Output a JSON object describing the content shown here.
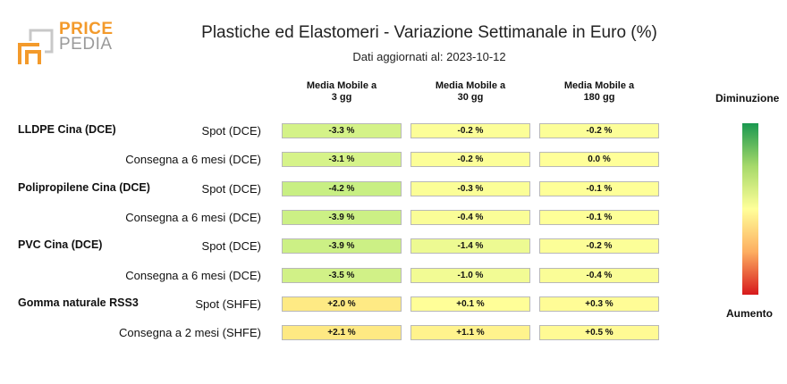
{
  "logo": {
    "line1": "PRICE",
    "line2": "PEDIA"
  },
  "chart_data": {
    "type": "table",
    "title": "Plastiche ed Elastomeri - Variazione Settimanale in Euro (%)",
    "subtitle": "Dati aggiornati al: 2023-10-12",
    "columns": [
      "Media Mobile a\n3 gg",
      "Media Mobile a\n30 gg",
      "Media Mobile a\n180 gg"
    ],
    "groups": [
      {
        "name": "LLDPE Cina (DCE)",
        "rows": [
          {
            "label": "Spot (DCE)",
            "values": [
              -3.3,
              -0.2,
              -0.2
            ],
            "labels": [
              "-3.3 %",
              "-0.2 %",
              "-0.2 %"
            ]
          },
          {
            "label": "Consegna a 6 mesi (DCE)",
            "values": [
              -3.1,
              -0.2,
              0.0
            ],
            "labels": [
              "-3.1 %",
              "-0.2 %",
              "0.0 %"
            ]
          }
        ]
      },
      {
        "name": "Polipropilene Cina (DCE)",
        "rows": [
          {
            "label": "Spot (DCE)",
            "values": [
              -4.2,
              -0.3,
              -0.1
            ],
            "labels": [
              "-4.2 %",
              "-0.3 %",
              "-0.1 %"
            ]
          },
          {
            "label": "Consegna a 6 mesi (DCE)",
            "values": [
              -3.9,
              -0.4,
              -0.1
            ],
            "labels": [
              "-3.9 %",
              "-0.4 %",
              "-0.1 %"
            ]
          }
        ]
      },
      {
        "name": "PVC Cina (DCE)",
        "rows": [
          {
            "label": "Spot (DCE)",
            "values": [
              -3.9,
              -1.4,
              -0.2
            ],
            "labels": [
              "-3.9 %",
              "-1.4 %",
              "-0.2 %"
            ]
          },
          {
            "label": "Consegna a 6 mesi (DCE)",
            "values": [
              -3.5,
              -1.0,
              -0.4
            ],
            "labels": [
              "-3.5 %",
              "-1.0 %",
              "-0.4 %"
            ]
          }
        ]
      },
      {
        "name": "Gomma naturale RSS3",
        "rows": [
          {
            "label": "Spot (SHFE)",
            "values": [
              2.0,
              0.1,
              0.3
            ],
            "labels": [
              "+2.0 %",
              "+0.1 %",
              "+0.3 %"
            ]
          },
          {
            "label": "Consegna a 2 mesi (SHFE)",
            "values": [
              2.1,
              1.1,
              0.5
            ],
            "labels": [
              "+2.1 %",
              "+1.1 %",
              "+0.5 %"
            ]
          }
        ]
      }
    ],
    "colorscale": {
      "top_label": "Diminuzione",
      "bottom_label": "Aumento",
      "colors": [
        "#1a9850",
        "#a6d96a",
        "#ffff99",
        "#fdae61",
        "#d7191c"
      ]
    }
  }
}
